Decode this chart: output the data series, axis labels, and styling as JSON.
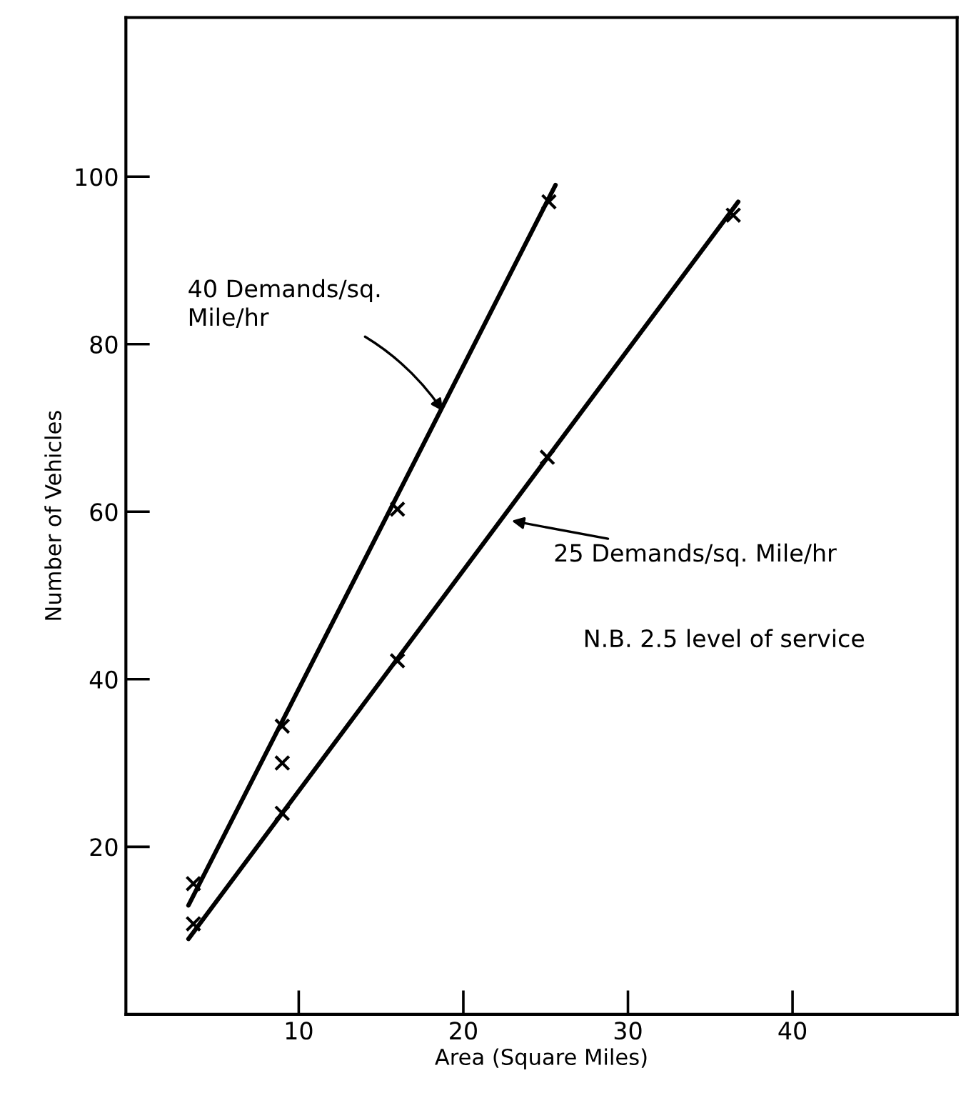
{
  "chart_data": {
    "type": "scatter",
    "xlabel": "Area (Square Miles)",
    "ylabel": "Number of Vehicles",
    "xlim": [
      -0.5,
      50
    ],
    "ylim": [
      0,
      119
    ],
    "xticks": [
      10,
      20,
      30,
      40
    ],
    "yticks": [
      20,
      40,
      60,
      80,
      100
    ],
    "grid": false,
    "legend": false,
    "series": [
      {
        "type": "line",
        "color": "#000000",
        "line_style": "solid",
        "marker": "none",
        "x": [
          3.3,
          25.6
        ],
        "values": [
          13,
          99
        ]
      },
      {
        "type": "line",
        "color": "#000000",
        "line_style": "solid",
        "marker": "none",
        "x": [
          3.3,
          36.7
        ],
        "values": [
          9,
          97
        ]
      },
      {
        "color": "#000000",
        "marker": "cross",
        "x": [
          3.6,
          9,
          9,
          16,
          25.2
        ],
        "values": [
          15.6,
          34.4,
          30,
          60.3,
          97
        ]
      },
      {
        "color": "#000000",
        "marker": "cross",
        "x": [
          3.6,
          9,
          16,
          25.1,
          36.4
        ],
        "values": [
          10.8,
          24,
          42.2,
          66.5,
          95.4
        ]
      }
    ],
    "annotations": [
      {
        "text": "40 Demands/sq.\nMile/hr",
        "x": 18.9,
        "y": 71.6
      },
      {
        "text": "25 Demands/sq. Mile/hr",
        "x": 22.7,
        "y": 59
      },
      "N.B. 2.5 level of service"
    ]
  }
}
